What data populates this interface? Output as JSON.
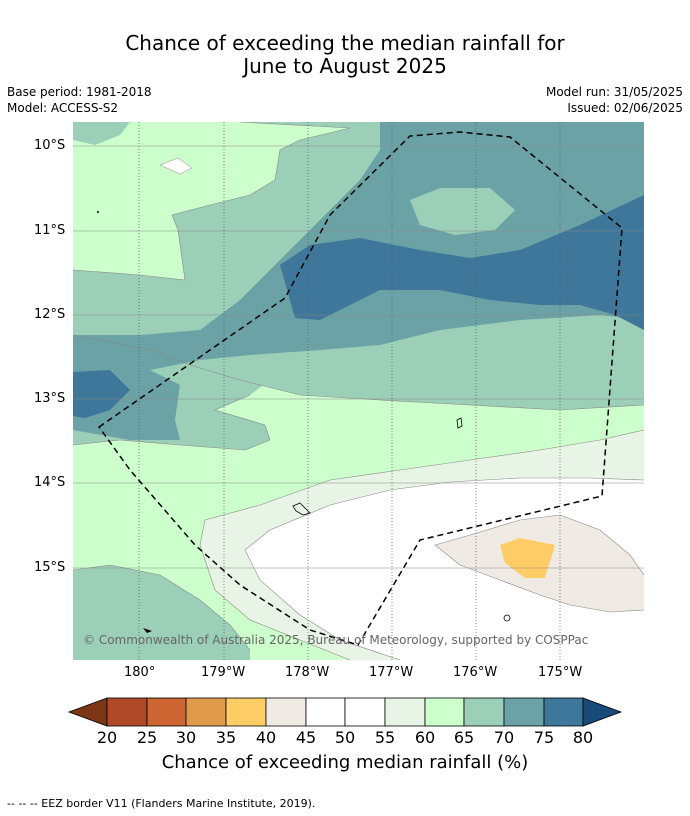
{
  "title": {
    "line1": "Chance of exceeding the median rainfall for",
    "line2": "June to August 2025"
  },
  "meta": {
    "base_period": "Base period: 1981-2018",
    "model": "Model: ACCESS-S2",
    "model_run": "Model run: 31/05/2025",
    "issued": "Issued: 02/06/2025"
  },
  "map": {
    "lat_labels": [
      "10°S",
      "11°S",
      "12°S",
      "13°S",
      "14°S",
      "15°S"
    ],
    "lon_labels": [
      "180°",
      "179°W",
      "178°W",
      "177°W",
      "176°W",
      "175°W"
    ],
    "copyright": "© Commonwealth of Australia 2025, Bureau of Meteorology, supported by COSPPac"
  },
  "colorbar": {
    "ticks": [
      "20",
      "25",
      "30",
      "35",
      "40",
      "45",
      "50",
      "55",
      "60",
      "65",
      "70",
      "75",
      "80"
    ],
    "colors": [
      "#7e3517",
      "#b0492a",
      "#cc6633",
      "#e09a4c",
      "#ffcc66",
      "#efebe4",
      "#ffffff",
      "#ffffff",
      "#e8f5e6",
      "#ccffcc",
      "#9ccfb8",
      "#6aa2a6",
      "#3e7799",
      "#184b7a"
    ],
    "title": "Chance of exceeding median rainfall (%)"
  },
  "legend": {
    "eez_text": "--  --  -- EEZ border V11 (Flanders Marine Institute, 2019)."
  }
}
